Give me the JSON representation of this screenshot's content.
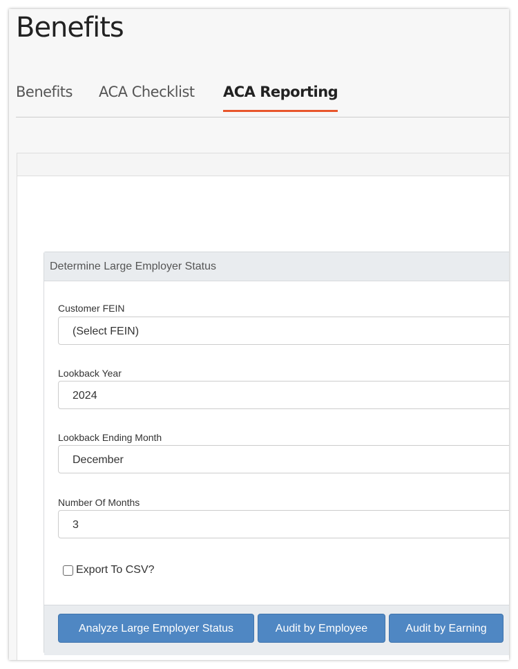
{
  "page": {
    "title": "Benefits"
  },
  "tabs": [
    {
      "label": "Benefits"
    },
    {
      "label": "ACA Checklist"
    },
    {
      "label": "ACA Reporting",
      "active": true
    }
  ],
  "panel": {
    "title": "Determine Large Employer Status"
  },
  "fields": {
    "fein": {
      "label": "Customer FEIN",
      "value": "(Select FEIN)"
    },
    "year": {
      "label": "Lookback Year",
      "value": "2024"
    },
    "month": {
      "label": "Lookback Ending Month",
      "value": "December"
    },
    "months": {
      "label": "Number Of Months",
      "value": "3"
    }
  },
  "export": {
    "label": "Export To CSV?",
    "checked": false
  },
  "buttons": {
    "analyze": "Analyze Large Employer Status",
    "audit_employee": "Audit by Employee",
    "audit_earning": "Audit by Earning"
  },
  "colors": {
    "accent": "#e8552b",
    "button": "#4f87c3"
  }
}
